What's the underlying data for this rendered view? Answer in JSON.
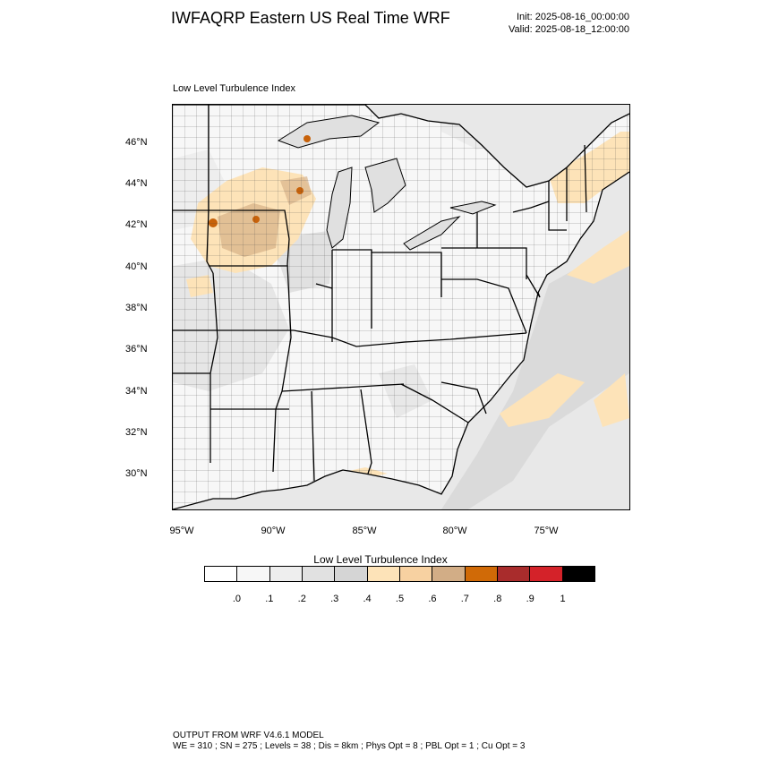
{
  "header": {
    "title": "IWFAQRP Eastern US Real Time WRF",
    "init": "Init: 2025-08-16_00:00:00",
    "valid": "Valid: 2025-08-18_12:00:00"
  },
  "map": {
    "subtitle": "Low Level Turbulence Index",
    "lat_labels": [
      "46°N",
      "44°N",
      "42°N",
      "40°N",
      "38°N",
      "36°N",
      "34°N",
      "32°N",
      "30°N"
    ],
    "lon_labels": [
      "95°W",
      "90°W",
      "85°W",
      "80°W",
      "75°W"
    ],
    "colors": {
      "land": "#f7f7f7",
      "land_gray": "#dcdcdc",
      "ocean": "#e6e6e6",
      "lake": "#e2e2e2",
      "peach": "#fde3b8",
      "tan": "#d8b48a",
      "orange": "#c8620a"
    }
  },
  "colorbar": {
    "title": "Low Level Turbulence Index",
    "colors": [
      "#ffffff",
      "#f7f7f7",
      "#eeeeee",
      "#e1e1e1",
      "#d5d5d5",
      "#fde3b8",
      "#f7d1a1",
      "#d2ad86",
      "#d06a07",
      "#a92c2c",
      "#d42229",
      "#000000"
    ],
    "labels": [
      ".0",
      ".1",
      ".2",
      ".3",
      ".4",
      ".5",
      ".6",
      ".7",
      ".8",
      ".9",
      "1"
    ]
  },
  "footer": {
    "line1": "OUTPUT FROM WRF V4.6.1 MODEL",
    "line2": "WE = 310 ; SN = 275 ; Levels = 38 ; Dis = 8km ; Phys Opt = 8 ; PBL Opt = 1 ; Cu Opt = 3"
  }
}
